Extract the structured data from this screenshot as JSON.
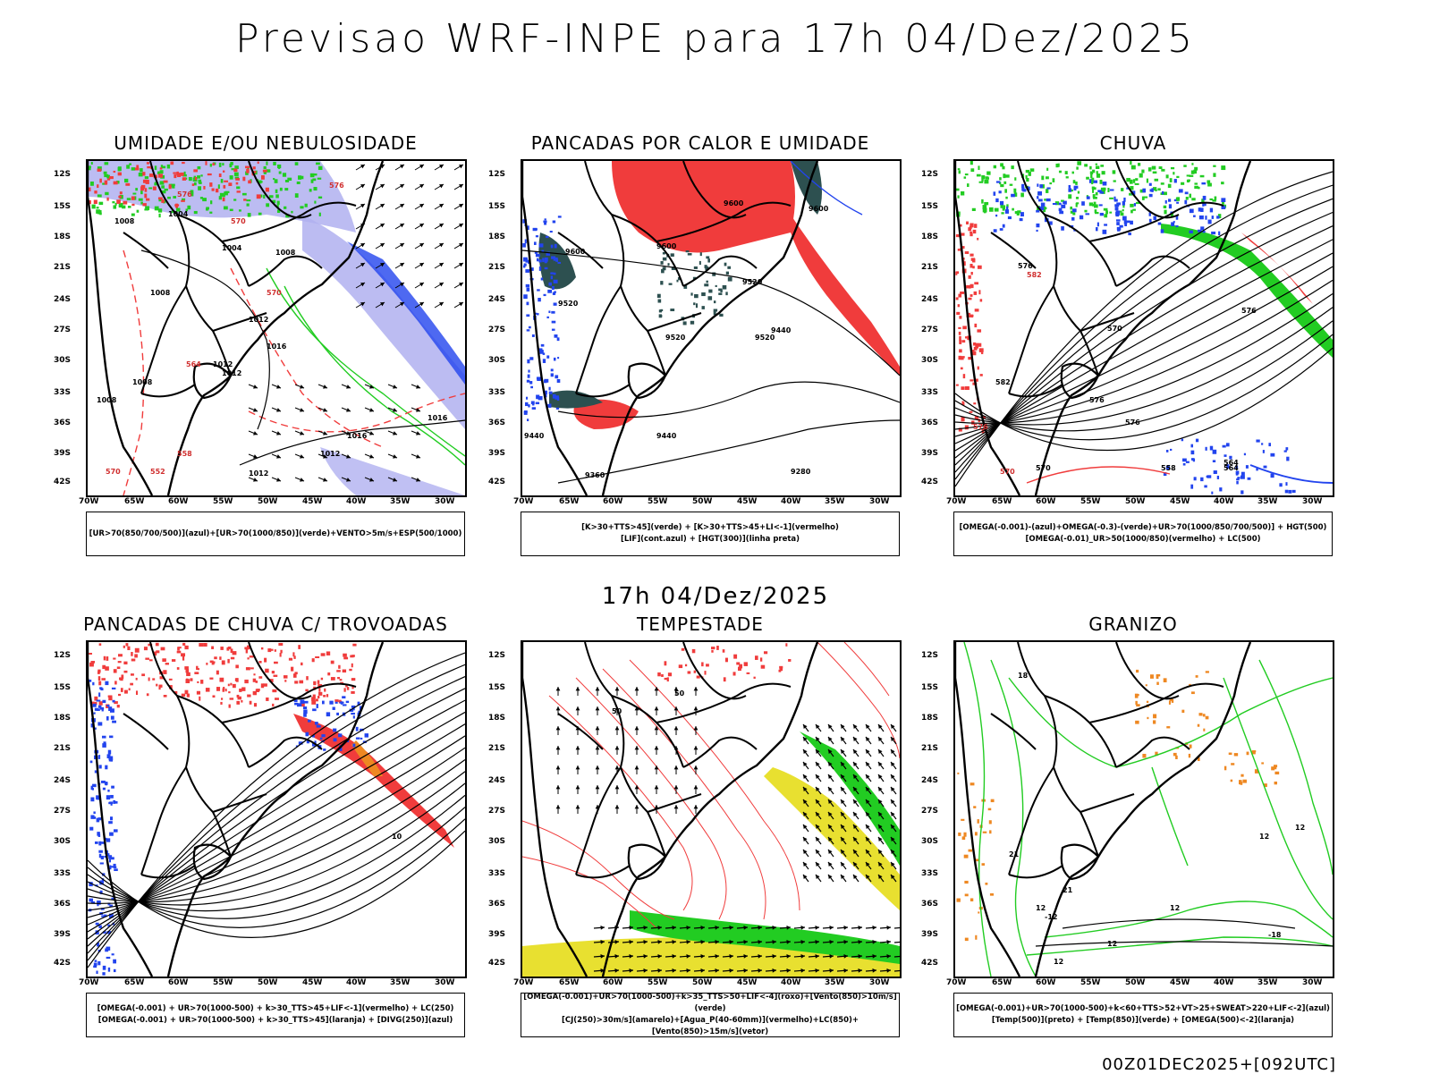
{
  "header": {
    "title": "Previsao WRF-INPE  para 17h 04/Dez/2025"
  },
  "subtitle": "17h 04/Dez/2025",
  "footer": "00Z01DEC2025+[092UTC]",
  "axes": {
    "lat_labels": [
      "12S",
      "15S",
      "18S",
      "21S",
      "24S",
      "27S",
      "30S",
      "33S",
      "36S",
      "39S",
      "42S"
    ],
    "lon_labels": [
      "70W",
      "65W",
      "60W",
      "55W",
      "50W",
      "45W",
      "40W",
      "35W",
      "30W"
    ]
  },
  "colors": {
    "red": "#f03c3c",
    "green": "#22cc22",
    "blue": "#2244ee",
    "lilac": "#b0b0f0",
    "yellow": "#e8e030",
    "teal": "#2d5050",
    "orange": "#ee8822"
  },
  "panels": [
    {
      "id": "umidade",
      "title": "UMIDADE E/OU NEBULOSIDADE",
      "legend": [
        "[UR>70(850/700/500)](azul)+[UR>70(1000/850)](verde)+VENTO>5m/s+ESP(500/1000)"
      ],
      "contour_labels": [
        "1008",
        "1004",
        "1004",
        "1008",
        "1012",
        "1008",
        "1012",
        "1016",
        "1012",
        "1008",
        "1016",
        "1016",
        "1012",
        "1008",
        "1012",
        "576",
        "570",
        "564",
        "558",
        "552",
        "570",
        "576",
        "570"
      ]
    },
    {
      "id": "calor",
      "title": "PANCADAS POR CALOR E UMIDADE",
      "legend": [
        "[K>30+TTS>45](verde) + [K>30+TTS>45+LI<-1](vermelho)",
        "[LIF](cont.azul) + [HGT(300)](linha preta)"
      ],
      "contour_labels": [
        "9600",
        "9600",
        "9600",
        "9600",
        "9520",
        "9520",
        "9520",
        "9520",
        "9440",
        "9440",
        "9440",
        "9280",
        "9360"
      ]
    },
    {
      "id": "chuva",
      "title": "CHUVA",
      "legend": [
        "[OMEGA(-0.001)-(azul)+OMEGA(-0.3)-(verde)+UR>70(1000/850/700/500)] + HGT(500)",
        "[OMEGA(-0.01)_UR>50(1000/850)(vermelho) + LC(500)"
      ],
      "contour_labels": [
        "576",
        "570",
        "576",
        "582",
        "576",
        "576",
        "570",
        "564",
        "558",
        "564",
        "582",
        "576",
        "570"
      ]
    },
    {
      "id": "trovoadas",
      "title": "PANCADAS DE CHUVA C/ TROVOADAS",
      "legend": [
        "[OMEGA(-0.001) + UR>70(1000-500) + k>30_TTS>45+LIF<-1](vermelho) + LC(250)",
        "[OMEGA(-0.001) + UR>70(1000-500) + k>30_TTS>45](laranja) + [DIVG(250)](azul)"
      ],
      "contour_labels": [
        "10"
      ]
    },
    {
      "id": "tempestade",
      "title": "TEMPESTADE",
      "legend": [
        "[OMEGA(-0.001)+UR>70(1000-500)+k>35_TTS>50+LIF<-4](roxo)+[Vento(850)>10m/s](verde)",
        "[CJ(250)>30m/s](amarelo)+[Agua_P(40-60mm)](vermelho)+LC(850)+[Vento(850)>15m/s](vetor)"
      ],
      "contour_labels": [
        "50",
        "50"
      ]
    },
    {
      "id": "granizo",
      "title": "GRANIZO",
      "legend": [
        "[OMEGA(-0.001)+UR>70(1000-500)+k<60+TTS>52+VT>25+SWEAT>220+LIF<-2](azul)",
        "[Temp(500)](preto) + [Temp(850)](verde) + [OMEGA(500)<-2](laranja)"
      ],
      "contour_labels": [
        "18",
        "12",
        "21",
        "12",
        "12",
        "12",
        "12",
        "-18",
        "-12",
        "12",
        "21"
      ]
    }
  ]
}
